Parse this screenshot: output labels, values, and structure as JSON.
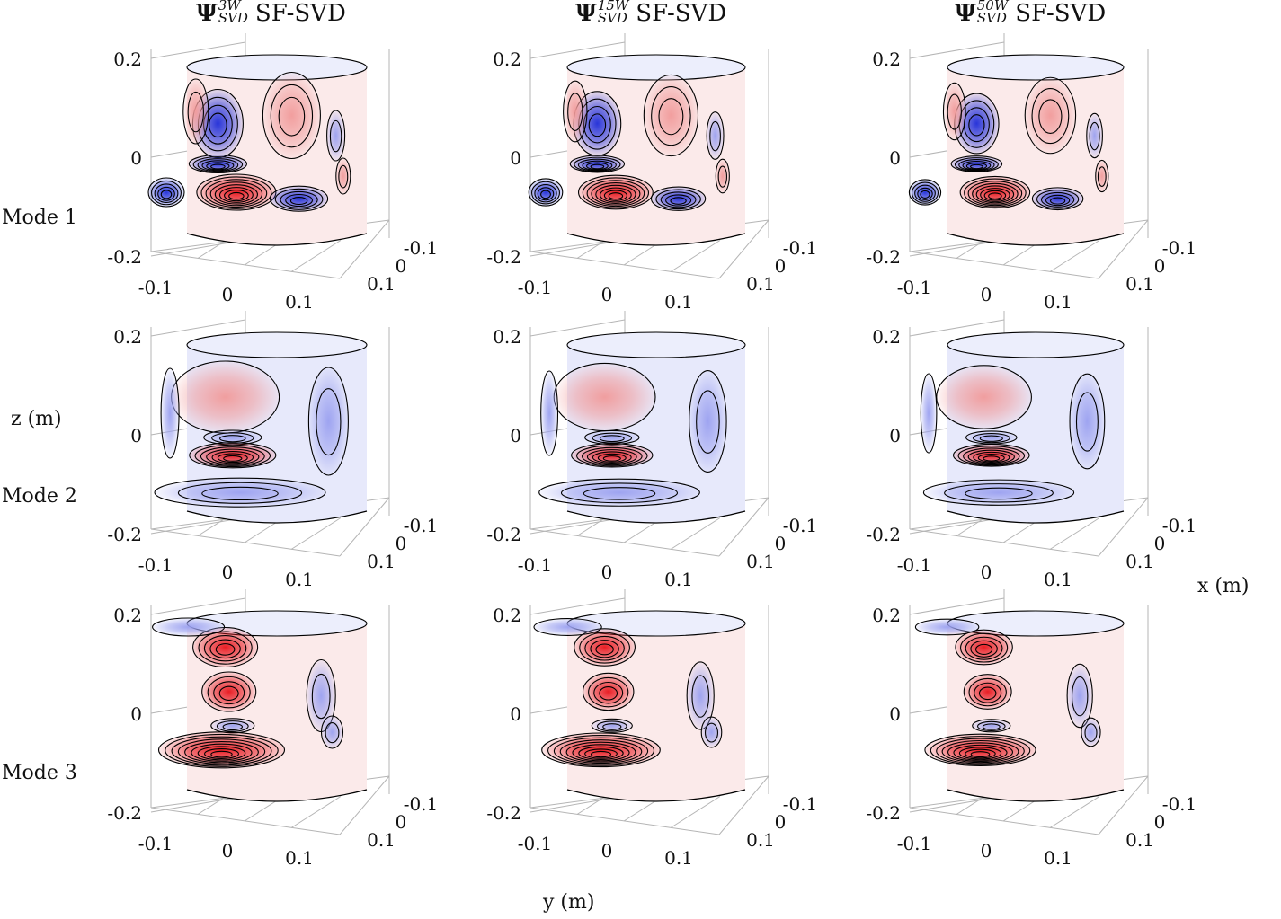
{
  "columns": [
    {
      "symbol": "Ψ",
      "sup": "3W",
      "sub": "SVD",
      "suffix": "SF-SVD"
    },
    {
      "symbol": "Ψ",
      "sup": "15W",
      "sub": "SVD",
      "suffix": "SF-SVD"
    },
    {
      "symbol": "Ψ",
      "sup": "50W",
      "sub": "SVD",
      "suffix": "SF-SVD"
    }
  ],
  "rows": [
    {
      "label": "Mode 1"
    },
    {
      "label": "Mode 2"
    },
    {
      "label": "Mode 3"
    }
  ],
  "axes": {
    "z_label": "z (m)",
    "y_label": "y (m)",
    "x_label": "x (m)",
    "z_ticks": [
      "0.2",
      "0",
      "-0.2"
    ],
    "y_ticks": [
      "-0.1",
      "0",
      "0.1"
    ],
    "x_ticks": [
      "-0.1",
      "0",
      "0.1"
    ]
  },
  "colors": {
    "positive": "#e8131a",
    "negative": "#1d2bd8",
    "contour": "#000000",
    "axis": "#b5b5b5"
  }
}
